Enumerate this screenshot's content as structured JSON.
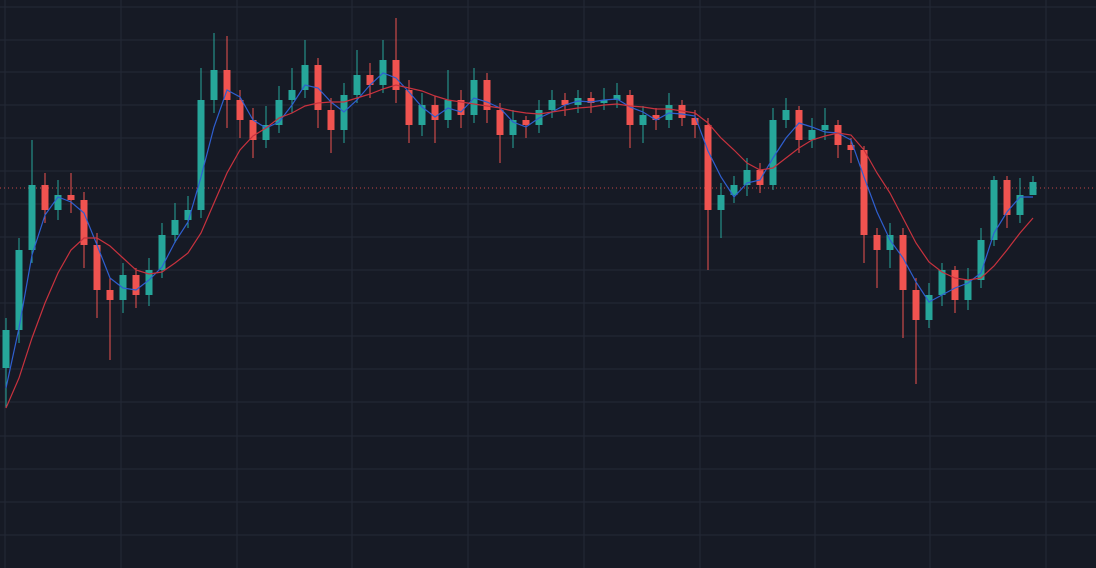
{
  "chart_data": {
    "type": "candlestick",
    "ylim": [
      0,
      568
    ],
    "up_color": "#26a69a",
    "down_color": "#ef5350",
    "open": [
      200,
      238,
      318,
      383,
      358,
      373,
      368,
      323,
      278,
      268,
      293,
      273,
      298,
      333,
      348,
      358,
      468,
      498,
      468,
      448,
      428,
      443,
      468,
      478,
      503,
      458,
      438,
      473,
      493,
      483,
      508,
      478,
      443,
      463,
      448,
      468,
      453,
      488,
      458,
      433,
      448,
      443,
      458,
      468,
      463,
      470,
      465,
      468,
      473,
      443,
      453,
      448,
      463,
      450,
      443,
      358,
      373,
      383,
      398,
      383,
      448,
      458,
      428,
      438,
      443,
      423,
      418,
      333,
      318,
      333,
      278,
      248,
      273,
      298,
      268,
      288,
      328,
      388,
      353,
      373
    ],
    "high": [
      250,
      330,
      428,
      395,
      388,
      395,
      376,
      335,
      290,
      305,
      300,
      310,
      345,
      365,
      372,
      500,
      535,
      532,
      478,
      460,
      462,
      482,
      500,
      528,
      510,
      470,
      485,
      518,
      505,
      528,
      550,
      488,
      475,
      472,
      498,
      478,
      500,
      495,
      465,
      458,
      452,
      468,
      478,
      475,
      478,
      476,
      480,
      485,
      478,
      462,
      460,
      475,
      468,
      458,
      450,
      385,
      392,
      410,
      405,
      460,
      470,
      462,
      450,
      460,
      448,
      430,
      422,
      340,
      345,
      340,
      290,
      285,
      305,
      302,
      300,
      340,
      392,
      392,
      390,
      392
    ],
    "low": [
      160,
      225,
      305,
      345,
      348,
      355,
      300,
      250,
      208,
      255,
      260,
      262,
      290,
      325,
      340,
      350,
      455,
      440,
      430,
      410,
      420,
      435,
      455,
      470,
      440,
      415,
      425,
      465,
      470,
      475,
      465,
      425,
      432,
      425,
      440,
      440,
      445,
      445,
      405,
      420,
      430,
      435,
      450,
      452,
      455,
      455,
      458,
      460,
      420,
      425,
      438,
      440,
      442,
      430,
      298,
      330,
      365,
      372,
      375,
      378,
      440,
      415,
      420,
      428,
      410,
      405,
      305,
      280,
      300,
      230,
      184,
      240,
      262,
      255,
      258,
      280,
      322,
      340,
      345,
      378
    ],
    "close": [
      238,
      318,
      383,
      358,
      373,
      368,
      323,
      278,
      268,
      293,
      273,
      298,
      333,
      348,
      358,
      468,
      498,
      468,
      448,
      428,
      443,
      468,
      478,
      503,
      458,
      438,
      473,
      493,
      483,
      508,
      478,
      443,
      463,
      448,
      468,
      453,
      488,
      458,
      433,
      448,
      443,
      458,
      468,
      463,
      470,
      465,
      468,
      473,
      443,
      453,
      448,
      463,
      450,
      443,
      358,
      373,
      383,
      398,
      383,
      448,
      458,
      428,
      438,
      443,
      423,
      418,
      333,
      318,
      333,
      278,
      248,
      273,
      298,
      268,
      288,
      328,
      388,
      353,
      373,
      386
    ],
    "series": [
      {
        "color": "#2f5fd0",
        "values": [
          180,
          240,
          313,
          353,
          371,
          366,
          355,
          323,
          290,
          280,
          278,
          288,
          301,
          326,
          346,
          391,
          441,
          478,
          471,
          448,
          440,
          446,
          463,
          483,
          480,
          466,
          456,
          468,
          483,
          495,
          490,
          476,
          461,
          451,
          460,
          456,
          470,
          466,
          460,
          446,
          441,
          450,
          456,
          463,
          467,
          466,
          468,
          469,
          461,
          456,
          448,
          455,
          454,
          452,
          417,
          391,
          371,
          385,
          388,
          410,
          430,
          445,
          441,
          436,
          435,
          428,
          391,
          356,
          328,
          310,
          286,
          266,
          273,
          280,
          285,
          295,
          335,
          356,
          371,
          371
        ]
      },
      {
        "color": "#c8323e",
        "values": [
          160,
          190,
          230,
          265,
          295,
          318,
          330,
          330,
          322,
          310,
          298,
          294,
          296,
          305,
          315,
          335,
          365,
          395,
          418,
          432,
          440,
          450,
          455,
          462,
          465,
          466,
          466,
          470,
          474,
          479,
          483,
          480,
          477,
          472,
          468,
          466,
          464,
          462,
          460,
          457,
          455,
          454,
          456,
          458,
          460,
          461,
          463,
          464,
          462,
          461,
          459,
          459,
          457,
          455,
          445,
          430,
          418,
          405,
          398,
          400,
          410,
          420,
          428,
          432,
          435,
          433,
          418,
          395,
          375,
          350,
          325,
          306,
          296,
          290,
          288,
          290,
          302,
          318,
          335,
          350
        ]
      }
    ],
    "price_line": 380,
    "price_line_color": "#ef5350"
  }
}
